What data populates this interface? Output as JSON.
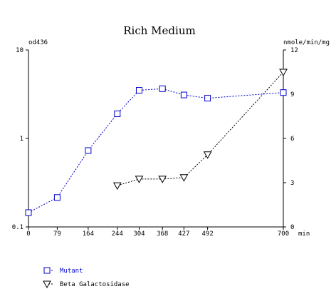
{
  "chart_data": {
    "type": "line",
    "title": "Rich Medium",
    "left_axis": {
      "label": "od436",
      "scale": "log",
      "range": [
        0.1,
        10
      ],
      "ticks": [
        {
          "value": 0.1,
          "label": "0.1"
        },
        {
          "value": 1,
          "label": "1"
        },
        {
          "value": 10,
          "label": "10"
        }
      ]
    },
    "right_axis": {
      "label": "nmole/min/mg",
      "scale": "linear",
      "range": [
        0,
        12
      ],
      "ticks": [
        {
          "value": 0,
          "label": "0"
        },
        {
          "value": 3,
          "label": "3"
        },
        {
          "value": 6,
          "label": "6"
        },
        {
          "value": 9,
          "label": "9"
        },
        {
          "value": 12,
          "label": "12"
        }
      ]
    },
    "x_axis": {
      "label": "min",
      "range": [
        0,
        700
      ],
      "ticks": [
        {
          "value": 0,
          "label": "0"
        },
        {
          "value": 79,
          "label": "79"
        },
        {
          "value": 164,
          "label": "164"
        },
        {
          "value": 244,
          "label": "244"
        },
        {
          "value": 304,
          "label": "304"
        },
        {
          "value": 368,
          "label": "368"
        },
        {
          "value": 427,
          "label": "427"
        },
        {
          "value": 492,
          "label": "492"
        },
        {
          "value": 700,
          "label": "700"
        }
      ]
    },
    "series": [
      {
        "name": "Mutant",
        "axis": "left",
        "marker": "square",
        "color": "#0000cc",
        "x": [
          0,
          79,
          164,
          244,
          304,
          368,
          427,
          492,
          700
        ],
        "y": [
          0.145,
          0.215,
          0.73,
          1.9,
          3.5,
          3.65,
          3.1,
          2.85,
          3.3
        ]
      },
      {
        "name": "Beta Galactosidase",
        "axis": "right",
        "marker": "triangle-down",
        "color": "#000000",
        "x": [
          244,
          304,
          368,
          427,
          492,
          700
        ],
        "y": [
          2.8,
          3.25,
          3.25,
          3.35,
          4.9,
          10.5
        ]
      }
    ],
    "grid": false,
    "legend_position": "bottom-left"
  }
}
